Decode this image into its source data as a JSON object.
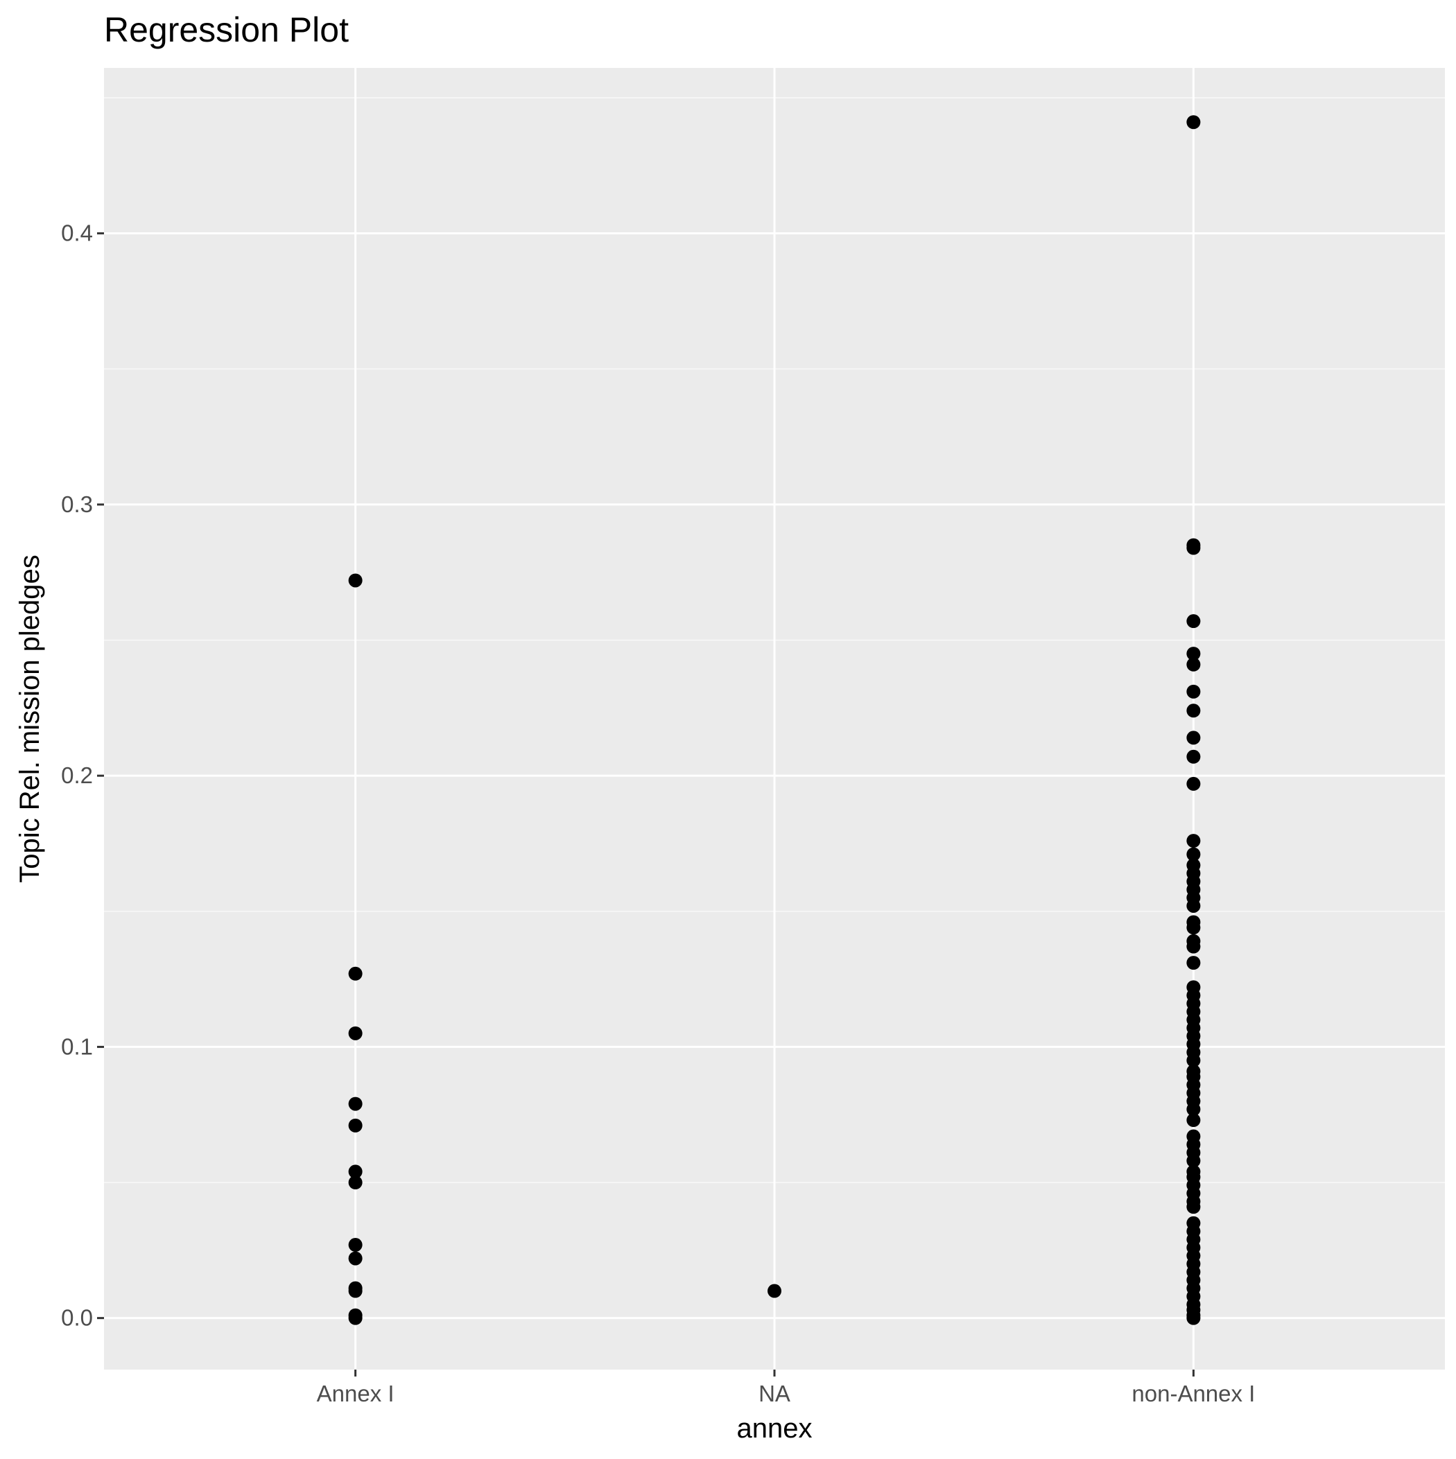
{
  "chart_data": {
    "type": "scatter",
    "title": "Regression Plot",
    "xlabel": "annex",
    "ylabel": "Topic Rel. mission pledges",
    "categories": [
      "Annex I",
      "NA",
      "non-Annex I"
    ],
    "ylim": [
      -0.019,
      0.461
    ],
    "yticks": [
      0.0,
      0.1,
      0.2,
      0.3,
      0.4
    ],
    "ytick_labels": [
      "0.0",
      "0.1",
      "0.2",
      "0.3",
      "0.4"
    ],
    "grid": true,
    "legend": "none",
    "series": [
      {
        "category": "Annex I",
        "y": [
          0.272,
          0.127,
          0.105,
          0.079,
          0.071,
          0.054,
          0.05,
          0.027,
          0.022,
          0.011,
          0.01,
          0.001,
          0.0
        ]
      },
      {
        "category": "NA",
        "y": [
          0.01
        ]
      },
      {
        "category": "non-Annex I",
        "y": [
          0.441,
          0.285,
          0.284,
          0.257,
          0.245,
          0.241,
          0.231,
          0.224,
          0.214,
          0.207,
          0.197,
          0.176,
          0.171,
          0.167,
          0.164,
          0.161,
          0.158,
          0.155,
          0.152,
          0.146,
          0.144,
          0.139,
          0.137,
          0.131,
          0.122,
          0.119,
          0.116,
          0.113,
          0.11,
          0.107,
          0.104,
          0.101,
          0.098,
          0.095,
          0.091,
          0.089,
          0.086,
          0.083,
          0.08,
          0.077,
          0.073,
          0.067,
          0.064,
          0.061,
          0.058,
          0.054,
          0.052,
          0.049,
          0.046,
          0.043,
          0.041,
          0.035,
          0.032,
          0.029,
          0.026,
          0.023,
          0.02,
          0.017,
          0.014,
          0.011,
          0.008,
          0.005,
          0.003,
          0.001,
          0.0
        ]
      }
    ],
    "colors": {
      "panel_background": "#ebebeb",
      "grid_major": "#ffffff",
      "grid_minor": "#f7f7f7",
      "point": "#000000",
      "tick_mark": "#333333",
      "tick_label": "#4d4d4d"
    }
  }
}
